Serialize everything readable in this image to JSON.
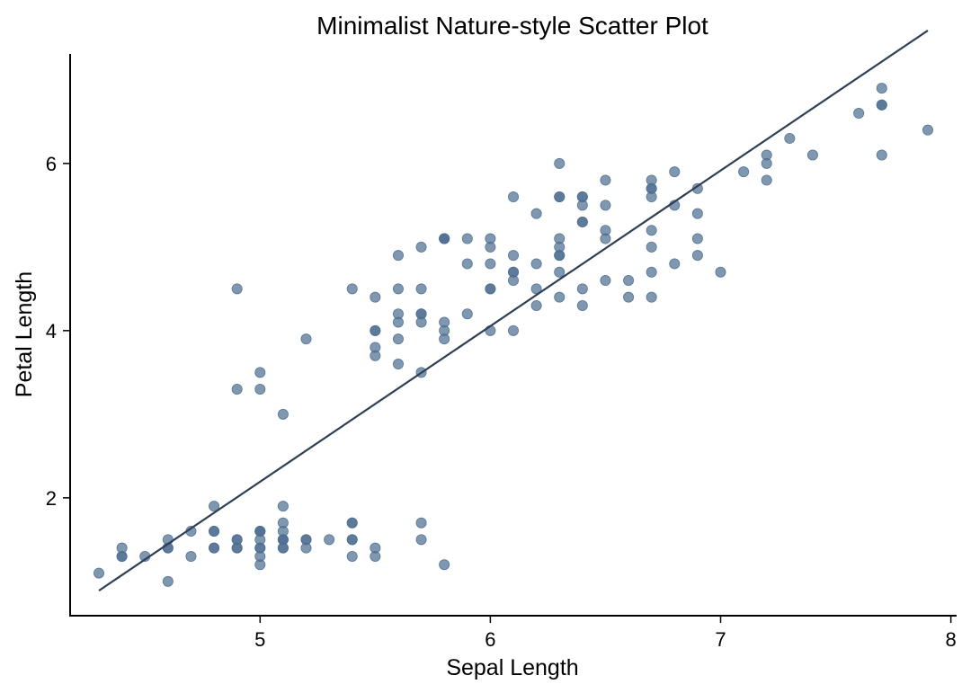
{
  "chart_data": {
    "type": "scatter",
    "title": "Minimalist Nature-style Scatter Plot",
    "xlabel": "Sepal Length",
    "ylabel": "Petal Length",
    "xlim": [
      4.175,
      8.025
    ],
    "ylim": [
      0.59,
      7.31
    ],
    "xticks": [
      5,
      6,
      7,
      8
    ],
    "yticks": [
      2,
      4,
      6
    ],
    "grid": false,
    "point_color": "#4f6f91",
    "point_opacity": 0.72,
    "line_color": "#2e3f55",
    "trend_line": {
      "x": [
        4.3,
        7.9
      ],
      "y": [
        0.89,
        7.59
      ]
    },
    "x": [
      5.1,
      4.9,
      4.7,
      4.6,
      5.0,
      5.4,
      4.6,
      5.0,
      4.4,
      4.9,
      5.4,
      4.8,
      4.8,
      4.3,
      5.8,
      5.7,
      5.4,
      5.1,
      5.7,
      5.1,
      5.4,
      5.1,
      4.6,
      5.1,
      4.8,
      5.0,
      5.0,
      5.2,
      5.2,
      4.7,
      4.8,
      5.4,
      5.2,
      5.5,
      4.9,
      5.0,
      5.5,
      4.9,
      4.4,
      5.1,
      5.0,
      4.5,
      4.4,
      5.0,
      5.1,
      4.8,
      5.1,
      4.6,
      5.3,
      5.0,
      7.0,
      6.4,
      6.9,
      5.5,
      6.5,
      5.7,
      6.3,
      4.9,
      6.6,
      5.2,
      5.0,
      5.9,
      6.0,
      6.1,
      5.6,
      6.7,
      5.6,
      5.8,
      6.2,
      5.6,
      5.9,
      6.1,
      6.3,
      6.1,
      6.4,
      6.6,
      6.8,
      6.7,
      6.0,
      5.7,
      5.5,
      5.5,
      5.8,
      6.0,
      5.4,
      6.0,
      6.7,
      6.3,
      5.6,
      5.5,
      5.5,
      6.1,
      5.8,
      5.0,
      5.6,
      5.7,
      5.7,
      6.2,
      5.1,
      5.7,
      6.3,
      5.8,
      7.1,
      6.3,
      6.5,
      7.6,
      4.9,
      7.3,
      6.7,
      7.2,
      6.5,
      6.4,
      6.8,
      5.7,
      5.8,
      6.4,
      6.5,
      7.7,
      7.7,
      6.0,
      6.9,
      5.6,
      7.7,
      6.3,
      6.7,
      7.2,
      6.2,
      6.1,
      6.4,
      7.2,
      7.4,
      7.9,
      6.4,
      6.3,
      6.1,
      7.7,
      6.3,
      6.4,
      6.0,
      6.9,
      6.7,
      6.9,
      5.8,
      6.8,
      6.7,
      6.7,
      6.3,
      6.5,
      6.2,
      5.9
    ],
    "y": [
      1.4,
      1.4,
      1.3,
      1.5,
      1.4,
      1.7,
      1.4,
      1.5,
      1.4,
      1.5,
      1.5,
      1.6,
      1.4,
      1.1,
      1.2,
      1.5,
      1.3,
      1.4,
      1.7,
      1.5,
      1.7,
      1.5,
      1.0,
      1.7,
      1.9,
      1.6,
      1.6,
      1.5,
      1.4,
      1.6,
      1.6,
      1.5,
      1.5,
      1.4,
      1.5,
      1.2,
      1.3,
      1.4,
      1.3,
      1.5,
      1.3,
      1.3,
      1.3,
      1.6,
      1.9,
      1.4,
      1.6,
      1.4,
      1.5,
      1.4,
      4.7,
      4.5,
      4.9,
      4.0,
      4.6,
      4.5,
      4.7,
      3.3,
      4.6,
      3.9,
      3.5,
      4.2,
      4.0,
      4.7,
      3.6,
      4.4,
      4.5,
      4.1,
      4.5,
      3.9,
      4.8,
      4.0,
      4.9,
      4.7,
      4.3,
      4.4,
      4.8,
      5.0,
      4.5,
      3.5,
      3.8,
      3.7,
      3.9,
      5.1,
      4.5,
      4.5,
      4.7,
      4.4,
      4.1,
      4.0,
      4.4,
      4.6,
      4.0,
      3.3,
      4.2,
      4.2,
      4.2,
      4.3,
      3.0,
      4.1,
      6.0,
      5.1,
      5.9,
      5.6,
      5.8,
      6.6,
      4.5,
      6.3,
      5.8,
      6.1,
      5.1,
      5.3,
      5.5,
      5.0,
      5.1,
      5.3,
      5.5,
      6.7,
      6.9,
      5.0,
      5.7,
      4.9,
      6.7,
      4.9,
      5.7,
      6.0,
      4.8,
      4.9,
      5.6,
      5.8,
      6.1,
      6.4,
      5.6,
      5.1,
      5.6,
      6.1,
      5.6,
      5.5,
      4.8,
      5.4,
      5.6,
      5.1,
      5.1,
      5.9,
      5.7,
      5.2,
      5.0,
      5.2,
      5.4,
      5.1
    ]
  }
}
